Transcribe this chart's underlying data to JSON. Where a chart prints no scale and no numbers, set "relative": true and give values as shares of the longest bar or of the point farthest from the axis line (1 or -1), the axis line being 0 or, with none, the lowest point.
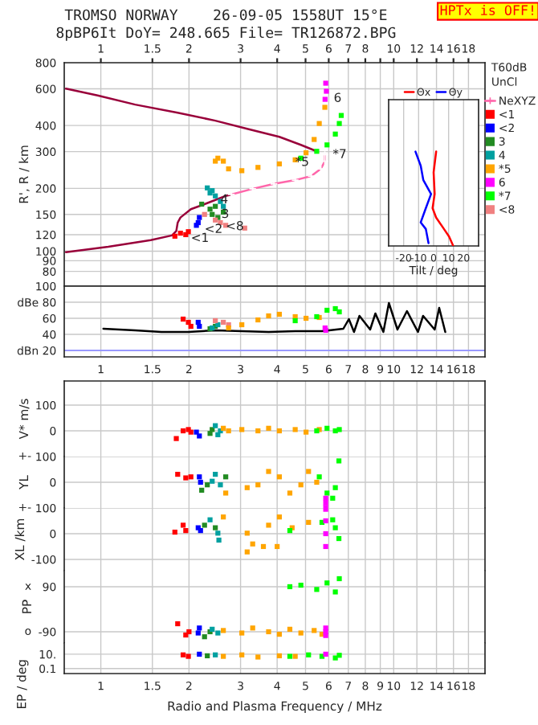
{
  "chart_data": [
    {
      "type": "scatter",
      "title": "TROMSO NORWAY    26-09-05 1558UT 15°E",
      "subtitle": "8pBP6It DoY= 248.665 File= TR126872.BPG",
      "ylabel": "R', R / km",
      "log": "xy",
      "grid": true,
      "legend": "right",
      "marker": "square",
      "xlim": [
        0.75,
        20.5
      ],
      "ylim": [
        68,
        800
      ],
      "xticks": [
        1,
        1.5,
        2,
        3,
        4,
        5,
        6,
        7,
        8,
        {
          "value": 9,
          "label": null
        },
        10,
        12,
        14,
        16,
        18
      ],
      "yticks": [
        800,
        600,
        400,
        300,
        200,
        150,
        120,
        100,
        90,
        80
      ],
      "annotations": [
        "HPTx is OFF!",
        "T60dB",
        "UnCl",
        {
          "text": "<1",
          "x": 2.03,
          "y": 115
        },
        {
          "text": "<2",
          "x": 2.26,
          "y": 127
        },
        {
          "text": "4",
          "x": 2.56,
          "y": 176
        },
        {
          "text": "3",
          "x": 2.58,
          "y": 150
        },
        {
          "text": "<8",
          "x": 2.67,
          "y": 131
        },
        {
          "text": "*5",
          "x": 4.61,
          "y": 266
        },
        {
          "text": "6",
          "x": 6.24,
          "y": 539
        },
        {
          "text": "*7",
          "x": 6.19,
          "y": 290
        }
      ],
      "series": [
        {
          "type": "line",
          "marker": "none",
          "color": "#99003a",
          "x": [
            0.76,
            0.975,
            1.31,
            1.83,
            2.46,
            3.16,
            4.07,
            4.82,
            5.46
          ],
          "values": [
            601,
            557,
            504,
            461,
            422,
            386,
            353,
            323,
            301
          ]
        },
        {
          "type": "line",
          "marker": "none",
          "color": "#99003a",
          "x": [
            0.76,
            1.06,
            1.48,
            1.75,
            1.81,
            1.83,
            1.87,
            2.03,
            2.26,
            2.67,
            2.79
          ],
          "values": [
            99,
            105,
            113,
            119,
            125,
            137,
            145,
            159,
            168,
            184,
            187
          ]
        },
        {
          "type": "line",
          "name": "NeXYZ",
          "marker": "cross",
          "color": "#ff66aa",
          "x": [
            2.79,
            3.3,
            3.9,
            4.61,
            5.23,
            5.64,
            5.82,
            5.82
          ],
          "values": [
            187,
            199,
            210,
            219,
            229,
            248,
            270,
            290
          ]
        },
        {
          "name": "<1",
          "color": "#ff0000",
          "x": [
            1.79,
            1.87,
            1.95,
            1.99
          ],
          "values": [
            118,
            122,
            120,
            124
          ]
        },
        {
          "name": "<2",
          "color": "#0000ff",
          "x": [
            2.15,
            2.17,
            2.12
          ],
          "values": [
            137,
            145,
            133
          ]
        },
        {
          "name": "3",
          "color": "#228b22",
          "x": [
            2.21,
            2.36,
            2.4,
            2.46,
            2.51,
            2.62
          ],
          "values": [
            168,
            159,
            150,
            164,
            145,
            154
          ]
        },
        {
          "name": "4",
          "color": "#00a0a0",
          "x": [
            2.31,
            2.4,
            2.46,
            2.56,
            2.62,
            2.36
          ],
          "values": [
            201,
            195,
            184,
            173,
            164,
            190
          ]
        },
        {
          "name": "*5",
          "color": "#ffa500",
          "x": [
            2.46,
            2.51,
            2.62,
            2.73,
            3.03,
            3.44,
            4.07,
            4.61,
            5.02,
            5.35,
            5.57,
            5.82
          ],
          "values": [
            270,
            279,
            270,
            248,
            243,
            252,
            262,
            274,
            296,
            343,
            409,
            489
          ]
        },
        {
          "name": "6",
          "color": "#ff00ff",
          "x": [
            5.86,
            5.89,
            5.83
          ],
          "values": [
            638,
            584,
            534
          ]
        },
        {
          "name": "*7",
          "color": "#00ff00",
          "x": [
            4.82,
            5.46,
            5.92,
            6.32,
            6.52,
            6.62
          ],
          "values": [
            279,
            301,
            323,
            364,
            409,
            447
          ]
        },
        {
          "name": "<8",
          "color": "#f08080",
          "x": [
            2.46,
            2.56,
            2.67,
            3.1,
            2.26
          ],
          "values": [
            141,
            137,
            133,
            129,
            150
          ]
        }
      ]
    },
    {
      "type": "line",
      "xlabel": "Tilt / deg",
      "relative": true,
      "grid": "x",
      "legend": "top",
      "xlim": [
        -30,
        30
      ],
      "xticks": [
        -20,
        -10,
        0,
        10,
        20
      ],
      "series": [
        {
          "name": "Θx",
          "color": "#ff0000",
          "x": [
            1.7,
            0,
            0.7,
            -0.7,
            1.7,
            6.9,
            10.3,
            13.1
          ],
          "values": [
            1,
            0.78,
            0.55,
            0.4,
            0.3,
            0.18,
            0.1,
            0
          ]
        },
        {
          "name": "Θy",
          "color": "#0000ff",
          "x": [
            -12.1,
            -8.6,
            -6.9,
            -1.7,
            -5.2,
            -8.6,
            -5.2,
            -3.4
          ],
          "values": [
            1,
            0.85,
            0.7,
            0.55,
            0.4,
            0.25,
            0.18,
            0.03
          ]
        }
      ]
    },
    {
      "type": "scatter",
      "log": "x",
      "grid": true,
      "marker": "square",
      "xlim": [
        0.75,
        20.5
      ],
      "ylim": [
        12,
        100
      ],
      "xticks": [
        1,
        1.5,
        2,
        3,
        4,
        5,
        6,
        7,
        8,
        9,
        10,
        12,
        14,
        16,
        18
      ],
      "yticks": [
        100,
        {
          "value": 80,
          "label": "dBe 80"
        },
        60,
        40,
        {
          "value": 20,
          "label": "dBn 20"
        }
      ],
      "ref_lines": [
        {
          "axis": "y",
          "value": 20,
          "color": "#9999ff"
        }
      ],
      "series": [
        {
          "type": "line",
          "marker": "none",
          "color": "#000000",
          "x": [
            1.02,
            1.31,
            1.61,
            1.99,
            2.46,
            3.03,
            3.74,
            4.61,
            5.69,
            6.73,
            7.03,
            7.32,
            7.64,
            8.31,
            8.66,
            9.22,
            9.63,
            10.3,
            11.1,
            12.1,
            12.6,
            13.8,
            14.3,
            15.0
          ],
          "values": [
            47,
            45,
            43,
            43,
            45,
            44,
            43,
            44,
            44,
            47,
            59,
            43,
            63,
            46,
            66,
            43,
            79,
            46,
            69,
            43,
            63,
            46,
            73,
            43
          ]
        },
        {
          "color": "#ff0000",
          "x": [
            1.91,
            1.99,
            2.03
          ],
          "values": [
            59,
            55,
            50
          ]
        },
        {
          "color": "#0000ff",
          "x": [
            2.15,
            2.17
          ],
          "values": [
            55,
            50
          ]
        },
        {
          "color": "#228b22",
          "x": [
            2.36,
            2.46
          ],
          "values": [
            47,
            50
          ]
        },
        {
          "color": "#00a0a0",
          "x": [
            2.51,
            2.4
          ],
          "values": [
            52,
            48
          ]
        },
        {
          "color": "#f08080",
          "x": [
            2.46,
            2.62,
            2.73
          ],
          "values": [
            57,
            55,
            52
          ]
        },
        {
          "color": "#ffa500",
          "x": [
            2.73,
            3.03,
            3.44,
            3.74,
            4.07,
            4.61,
            5.02,
            5.57
          ],
          "values": [
            48,
            52,
            58,
            63,
            65,
            62,
            60,
            61
          ]
        },
        {
          "color": "#00ff00",
          "x": [
            4.61,
            5.46,
            5.92,
            6.32,
            6.52
          ],
          "values": [
            57,
            62,
            70,
            72,
            68
          ]
        },
        {
          "color": "#ff00ff",
          "x": [
            5.83,
            5.86
          ],
          "values": [
            48,
            45
          ]
        }
      ]
    },
    {
      "type": "scatter",
      "ylabel": "V* m/s",
      "log": "x",
      "grid": true,
      "tick_labels": "y",
      "marker": "square",
      "xlim": [
        0.75,
        20.5
      ],
      "ylim": [
        -100,
        194
      ],
      "xticks": [
        1,
        1.5,
        2,
        3,
        4,
        5,
        6,
        7,
        8,
        9,
        10,
        12,
        14,
        16,
        18
      ],
      "yticks": [
        100,
        0
      ],
      "series": [
        {
          "color": "#ff0000",
          "x": [
            1.91,
            1.99,
            2.03,
            1.81
          ],
          "values": [
            0,
            5,
            -5,
            -30
          ]
        },
        {
          "color": "#0000ff",
          "x": [
            2.17,
            2.12
          ],
          "values": [
            -20,
            -5
          ]
        },
        {
          "color": "#228b22",
          "x": [
            2.36,
            2.4
          ],
          "values": [
            -10,
            5
          ]
        },
        {
          "color": "#00a0a0",
          "x": [
            2.46,
            2.51,
            2.56
          ],
          "values": [
            20,
            -15,
            0
          ]
        },
        {
          "color": "#ffa500",
          "x": [
            2.62,
            2.73,
            3.03,
            3.44,
            3.74,
            4.07,
            4.61,
            5.02,
            5.57
          ],
          "values": [
            10,
            0,
            5,
            0,
            10,
            0,
            5,
            -5,
            5
          ]
        },
        {
          "color": "#00ff00",
          "x": [
            5.46,
            5.92,
            6.32,
            6.52
          ],
          "values": [
            0,
            10,
            0,
            5
          ]
        }
      ]
    },
    {
      "type": "scatter",
      "ylabel": "YL",
      "log": "x",
      "grid": true,
      "tick_labels": "y",
      "marker": "square",
      "xlim": [
        0.75,
        20.5
      ],
      "ylim": [
        -100,
        100
      ],
      "xticks": [
        1,
        1.5,
        2,
        3,
        4,
        5,
        6,
        7,
        8,
        9,
        10,
        12,
        14,
        16,
        18
      ],
      "yticks": [
        100,
        0
      ],
      "annotations": [
        "+-"
      ],
      "series": [
        {
          "color": "#ff0000",
          "x": [
            1.83,
            1.95,
            2.03
          ],
          "values": [
            31,
            17,
            21
          ]
        },
        {
          "color": "#0000ff",
          "x": [
            2.17,
            2.19
          ],
          "values": [
            21,
            0
          ]
        },
        {
          "color": "#228b22",
          "x": [
            2.21,
            2.31,
            2.67
          ],
          "values": [
            -31,
            -10,
            21
          ]
        },
        {
          "color": "#00a0a0",
          "x": [
            2.46,
            2.56,
            2.4
          ],
          "values": [
            31,
            -10,
            4
          ]
        },
        {
          "color": "#ffa500",
          "x": [
            2.67,
            3.16,
            3.44,
            3.74,
            4.07,
            4.42,
            4.82,
            5.12,
            5.46
          ],
          "values": [
            -42,
            -21,
            -10,
            42,
            21,
            -42,
            -10,
            42,
            0
          ]
        },
        {
          "color": "#00ff00",
          "x": [
            5.57,
            5.92,
            6.32,
            6.5,
            6.19
          ],
          "values": [
            21,
            -42,
            -21,
            83,
            -62
          ]
        },
        {
          "color": "#ff00ff",
          "x": [
            5.86,
            5.86,
            5.86
          ],
          "values": [
            -62,
            -80,
            -98
          ]
        }
      ]
    },
    {
      "type": "scatter",
      "ylabel": "XL /km",
      "log": "x",
      "grid": true,
      "tick_labels": "y",
      "marker": "square",
      "xlim": [
        0.75,
        20.5
      ],
      "ylim": [
        -144,
        100
      ],
      "xticks": [
        1,
        1.5,
        2,
        3,
        4,
        5,
        6,
        7,
        8,
        9,
        10,
        12,
        14,
        16,
        18
      ],
      "yticks": [
        100,
        0,
        -100
      ],
      "annotations": [
        "+-"
      ],
      "series": [
        {
          "color": "#ff0000",
          "x": [
            1.91,
            1.95,
            1.79
          ],
          "values": [
            33,
            12,
            6
          ]
        },
        {
          "color": "#0000ff",
          "x": [
            2.15,
            2.19
          ],
          "values": [
            23,
            12
          ]
        },
        {
          "color": "#228b22",
          "x": [
            2.26,
            2.46
          ],
          "values": [
            33,
            23
          ]
        },
        {
          "color": "#00a0a0",
          "x": [
            2.36,
            2.51,
            2.53
          ],
          "values": [
            54,
            2,
            -25
          ]
        },
        {
          "color": "#ffa500",
          "x": [
            2.62,
            3.16,
            3.3,
            3.59,
            3.74,
            4.07,
            4.5,
            5.12,
            3.16,
            4.0
          ],
          "values": [
            65,
            2,
            -40,
            -50,
            33,
            65,
            23,
            44,
            -71,
            -50
          ]
        },
        {
          "color": "#00ff00",
          "x": [
            4.42,
            5.69,
            6.19,
            6.5,
            6.32
          ],
          "values": [
            12,
            44,
            54,
            -19,
            23
          ]
        },
        {
          "color": "#ff00ff",
          "x": [
            5.86,
            5.86,
            5.86,
            5.86
          ],
          "values": [
            95,
            50,
            0,
            -50
          ]
        }
      ]
    },
    {
      "type": "scatter",
      "ylabel": "PP",
      "log": "x",
      "grid": true,
      "tick_labels": "y",
      "marker": "square",
      "xlim": [
        0.75,
        20.5
      ],
      "ylim": [
        -135,
        154
      ],
      "xticks": [
        1,
        1.5,
        2,
        3,
        4,
        5,
        6,
        7,
        8,
        9,
        10,
        12,
        14,
        16,
        18
      ],
      "yticks": [
        90,
        -90
      ],
      "annotations": [
        "x",
        "o"
      ],
      "series": [
        {
          "color": "#ff0000",
          "x": [
            1.83,
            1.95,
            2.0
          ],
          "values": [
            -58,
            -103,
            -90
          ]
        },
        {
          "color": "#0000ff",
          "x": [
            2.17,
            2.15
          ],
          "values": [
            -75,
            -95
          ]
        },
        {
          "color": "#228b22",
          "x": [
            2.36,
            2.26
          ],
          "values": [
            -90,
            -110
          ]
        },
        {
          "color": "#00a0a0",
          "x": [
            2.4,
            2.51
          ],
          "values": [
            -80,
            -95
          ]
        },
        {
          "color": "#ffa500",
          "x": [
            2.62,
            3.03,
            3.3,
            3.74,
            4.07,
            4.42,
            4.82,
            5.35,
            5.69
          ],
          "values": [
            -85,
            -95,
            -75,
            -90,
            -100,
            -80,
            -95,
            -85,
            -100
          ]
        },
        {
          "color": "#ff00ff",
          "x": [
            5.86,
            5.86,
            5.86
          ],
          "values": [
            -90,
            -75,
            -105
          ]
        },
        {
          "color": "#00ff00",
          "x": [
            4.42,
            4.82,
            5.46,
            5.92,
            6.32,
            6.52
          ],
          "values": [
            90,
            96,
            79,
            105,
            69,
            122
          ]
        }
      ]
    },
    {
      "type": "scatter",
      "ylabel": "EP / deg",
      "xlabel": "Radio and Plasma Frequency / MHz",
      "log": "xy",
      "grid": true,
      "marker": "square",
      "xlim": [
        0.75,
        20.5
      ],
      "ylim": [
        0.02,
        360
      ],
      "xticks": [
        1,
        1.5,
        2,
        3,
        4,
        5,
        6,
        7,
        8,
        9,
        10,
        12,
        14,
        16,
        18
      ],
      "yticks": [
        {
          "value": 10,
          "label": "10."
        },
        0.1
      ],
      "series": [
        {
          "color": "#ff0000",
          "x": [
            1.91,
            1.99
          ],
          "values": [
            8,
            5
          ]
        },
        {
          "color": "#0000ff",
          "x": [
            2.17
          ],
          "values": [
            10
          ]
        },
        {
          "color": "#228b22",
          "x": [
            2.31
          ],
          "values": [
            6
          ]
        },
        {
          "color": "#00a0a0",
          "x": [
            2.46
          ],
          "values": [
            8
          ]
        },
        {
          "color": "#ffa500",
          "x": [
            2.62,
            3.03,
            3.44,
            4.07,
            4.61
          ],
          "values": [
            5,
            8,
            4,
            6,
            5
          ]
        },
        {
          "color": "#00ff00",
          "x": [
            4.42,
            5.12,
            5.69,
            6.32,
            6.52
          ],
          "values": [
            5,
            8,
            5,
            3,
            7
          ]
        },
        {
          "color": "#ff00ff",
          "x": [
            5.86
          ],
          "values": [
            10
          ]
        }
      ]
    }
  ]
}
